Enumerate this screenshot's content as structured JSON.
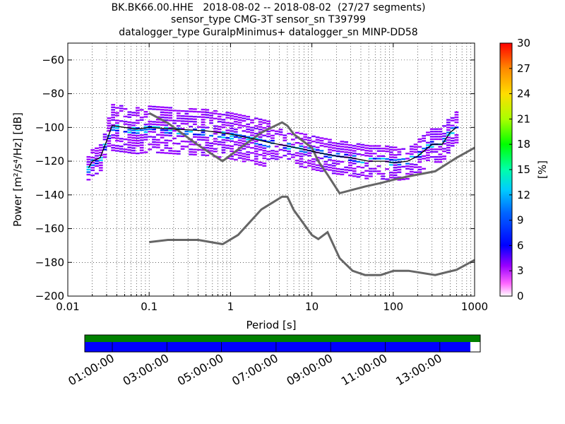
{
  "title_lines": [
    "BK.BK66.00.HHE   2018-08-02 -- 2018-08-02  (27/27 segments)",
    "sensor_type CMG-3T sensor_sn T39799",
    "datalogger_type GuralpMinimus+ datalogger_sn MINP-DD58"
  ],
  "chart_data": [
    {
      "type": "heatmap",
      "name": "ppsd",
      "xlabel": "Period [s]",
      "ylabel": "Power [m²/s⁴/Hz] [dB]",
      "xscale": "log",
      "xlim": [
        0.01,
        1000
      ],
      "ylim": [
        -200,
        -50
      ],
      "x_tick_labels": [
        "0.01",
        "0.1",
        "1",
        "10",
        "100",
        "1000"
      ],
      "x_ticks": [
        0.01,
        0.1,
        1,
        10,
        100,
        1000
      ],
      "y_ticks": [
        -200,
        -180,
        -160,
        -140,
        -120,
        -100,
        -80,
        -60
      ],
      "y_tick_labels": [
        "−200",
        "−180",
        "−160",
        "−140",
        "−120",
        "−100",
        "−80",
        "−60"
      ],
      "colorbar": {
        "label": "[%]",
        "range": [
          0,
          30
        ],
        "ticks": [
          0,
          3,
          6,
          9,
          12,
          15,
          18,
          21,
          24,
          27,
          30
        ]
      },
      "grid": true,
      "nhnm": {
        "x": [
          0.1,
          0.17,
          0.4,
          0.8,
          1.24,
          2.4,
          4.3,
          5.0,
          6.0,
          10.0,
          12.0,
          15.6,
          21.9,
          31.6,
          45.0,
          70.0,
          101.0,
          154.0,
          328.0,
          600.0,
          1000.0
        ],
        "y": [
          -91.5,
          -97.4,
          -110.5,
          -120.0,
          -113.0,
          -103.0,
          -97.0,
          -99.0,
          -104.0,
          -112.0,
          -120.0,
          -128.0,
          -139.0,
          -137.0,
          -135.0,
          -133.0,
          -131.0,
          -129.0,
          -126.0,
          -118.0,
          -112.0
        ]
      },
      "nlnm": {
        "x": [
          0.1,
          0.17,
          0.4,
          0.8,
          1.24,
          2.4,
          4.3,
          5.0,
          6.0,
          10.0,
          12.0,
          15.6,
          21.9,
          31.6,
          45.0,
          70.0,
          101.0,
          154.0,
          328.0,
          600.0,
          1000.0
        ],
        "y": [
          -168.0,
          -166.7,
          -166.7,
          -169.2,
          -163.7,
          -148.6,
          -141.1,
          -141.1,
          -149.0,
          -163.8,
          -166.2,
          -162.1,
          -177.5,
          -185.0,
          -187.5,
          -187.5,
          -185.0,
          -185.0,
          -187.5,
          -184.4,
          -178.6
        ]
      },
      "mode_line": {
        "x": [
          0.018,
          0.02,
          0.025,
          0.03,
          0.035,
          0.05,
          0.07,
          0.1,
          0.2,
          0.5,
          1,
          2,
          3,
          5,
          8,
          12,
          20,
          30,
          50,
          80,
          100,
          150,
          200,
          300,
          400,
          500,
          600
        ],
        "y": [
          -124,
          -120,
          -118,
          -108,
          -99,
          -100,
          -101,
          -100,
          -101,
          -102,
          -104,
          -107,
          -109,
          -111,
          -113,
          -115,
          -117,
          -118,
          -120,
          -120,
          -121,
          -120,
          -117,
          -110,
          -110,
          -103,
          -100
        ]
      }
    },
    {
      "type": "heatmap",
      "name": "data-availability",
      "x_tick_labels": [
        "01:00:00",
        "03:00:00",
        "05:00:00",
        "07:00:00",
        "09:00:00",
        "11:00:00",
        "13:00:00"
      ],
      "rows": [
        {
          "name": "",
          "color": "#008000",
          "coverage": 1.0
        },
        {
          "name": "",
          "color": "#0000ff",
          "coverage": 0.975
        }
      ]
    }
  ]
}
